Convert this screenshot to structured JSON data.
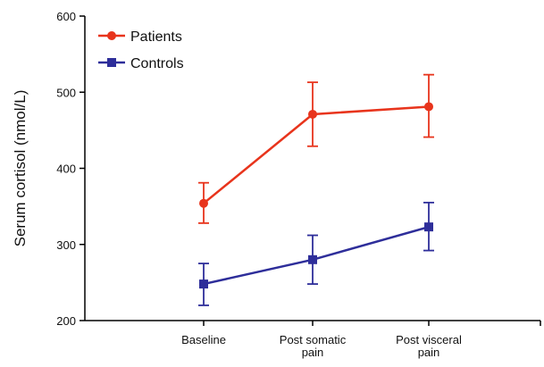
{
  "chart_data": {
    "type": "line",
    "categories": [
      [
        "Baseline"
      ],
      [
        "Post somatic",
        "pain"
      ],
      [
        "Post visceral",
        "pain"
      ]
    ],
    "ylabel": "Serum cortisol (nmol/L)",
    "ylim": [
      200,
      600
    ],
    "yticks": [
      "200",
      "300",
      "400",
      "500",
      "600"
    ],
    "legend_position": "top-left",
    "grid": false,
    "series": [
      {
        "name": "Patients",
        "color": "#e8341c",
        "marker": "circle",
        "values": [
          354,
          471,
          481
        ],
        "err_low": [
          328,
          429,
          441
        ],
        "err_high": [
          381,
          513,
          523
        ]
      },
      {
        "name": "Controls",
        "color": "#2e2e9a",
        "marker": "square",
        "values": [
          248,
          280,
          323
        ],
        "err_low": [
          220,
          248,
          292
        ],
        "err_high": [
          275,
          312,
          355
        ]
      }
    ]
  }
}
